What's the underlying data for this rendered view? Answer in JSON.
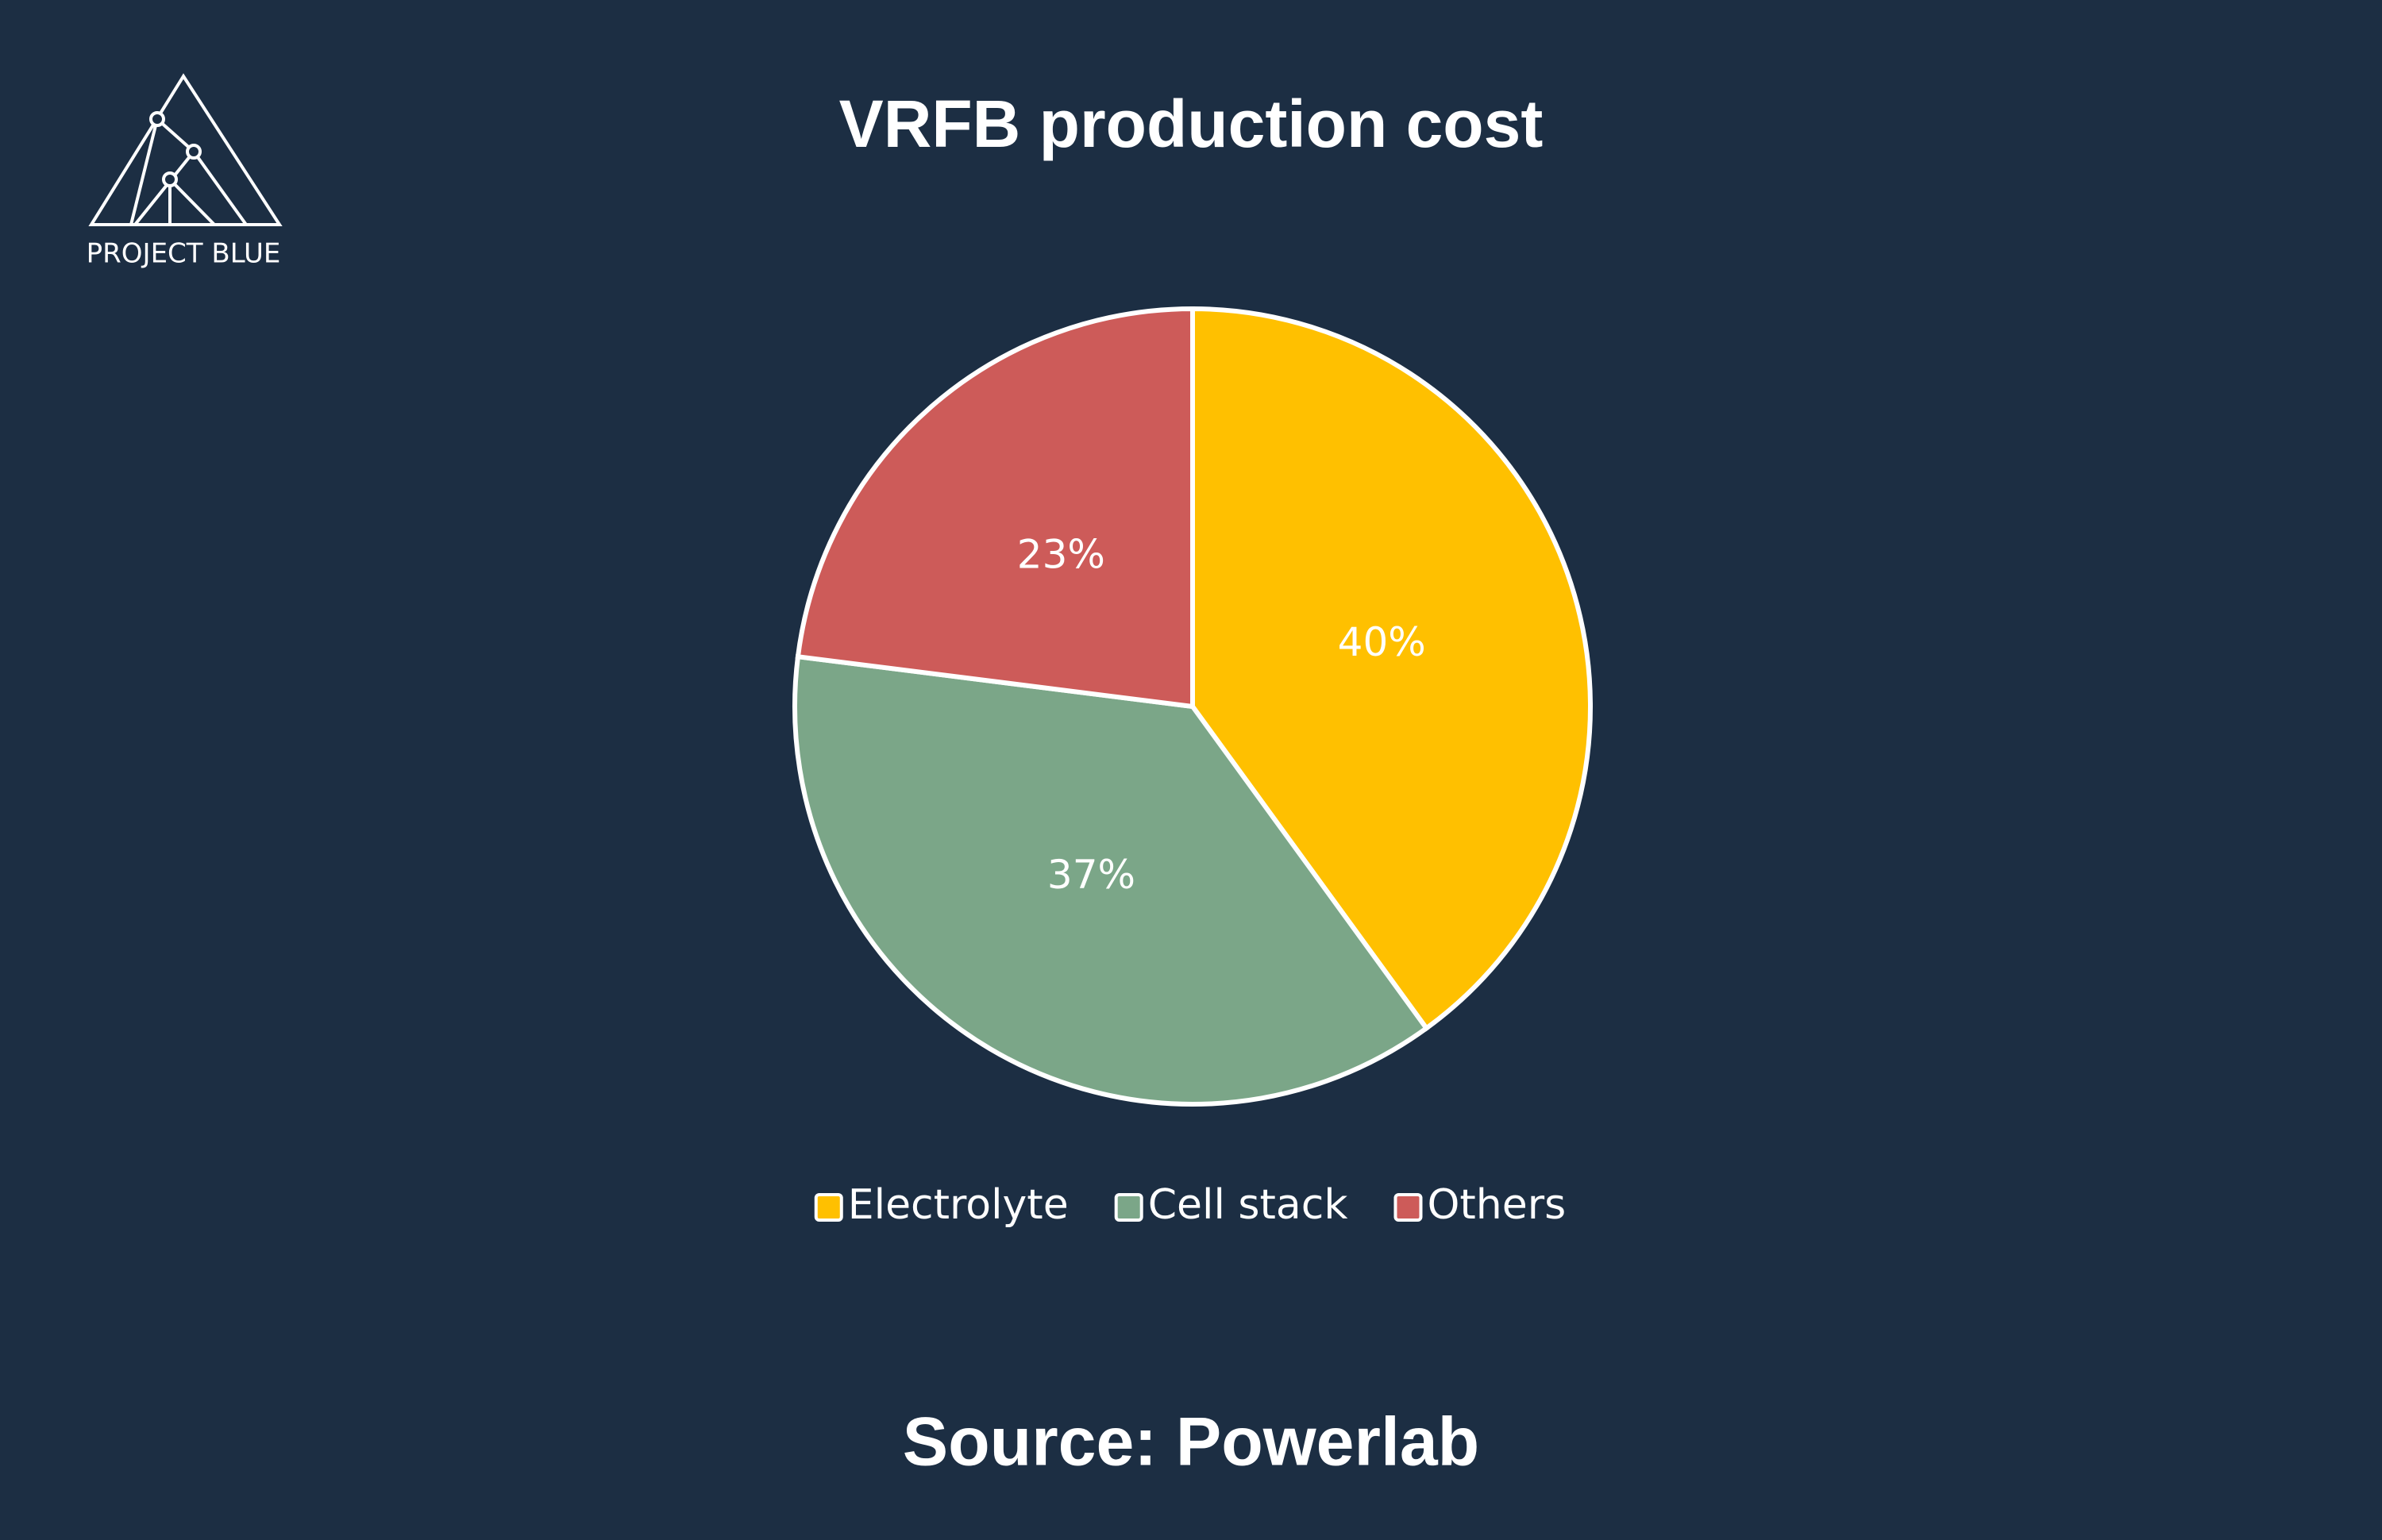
{
  "logo": {
    "text": "PROJECT BLUE"
  },
  "chart_data": {
    "type": "pie",
    "title": "VRFB production cost",
    "categories": [
      "Electrolyte",
      "Cell stack",
      "Others"
    ],
    "values": [
      40,
      37,
      23
    ],
    "value_labels": [
      "40%",
      "37%",
      "23%"
    ],
    "colors": [
      "#FFC000",
      "#7BA688",
      "#CD5B59"
    ],
    "legend": "bottom",
    "source": "Source: Powerlab"
  }
}
